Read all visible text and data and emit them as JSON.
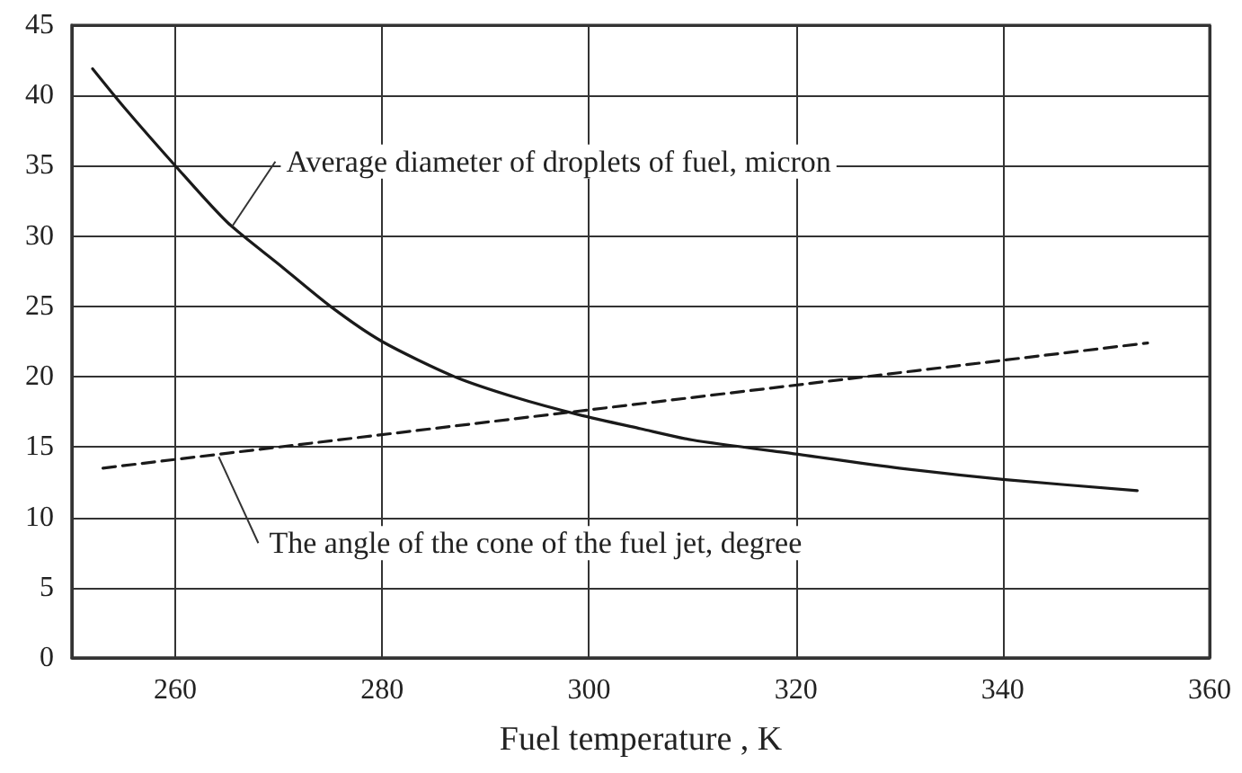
{
  "chart_data": {
    "type": "line",
    "xlabel": "Fuel temperature , K",
    "xlim": [
      250,
      360
    ],
    "xticks": [
      {
        "value": 250,
        "label": null
      },
      260,
      280,
      300,
      320,
      340,
      360
    ],
    "ylim": [
      0,
      45
    ],
    "yticks": [
      0,
      5,
      10,
      15,
      20,
      25,
      30,
      35,
      40,
      45
    ],
    "grid": true,
    "marker": "none",
    "series": [
      {
        "color": "#1a1a1a",
        "line_style": "solid",
        "x": [
          252,
          255,
          260,
          265,
          270,
          275,
          280,
          287,
          293,
          299,
          305,
          310,
          320,
          330,
          340,
          353
        ],
        "values": [
          41.9,
          39.2,
          35,
          31,
          28,
          25,
          22.5,
          20,
          18.5,
          17.3,
          16.3,
          15.5,
          14.5,
          13.5,
          12.7,
          11.9
        ]
      },
      {
        "color": "#1a1a1a",
        "line_style": "dashed",
        "x": [
          253,
          354
        ],
        "values": [
          13.5,
          22.4
        ]
      }
    ],
    "annotations": [
      {
        "text": "Average diameter of droplets of fuel, micron",
        "x": 265.5,
        "y": 30.7
      },
      {
        "text": "The angle of the cone of the fuel jet, degree",
        "x": 264.2,
        "y": 14.3
      }
    ]
  }
}
